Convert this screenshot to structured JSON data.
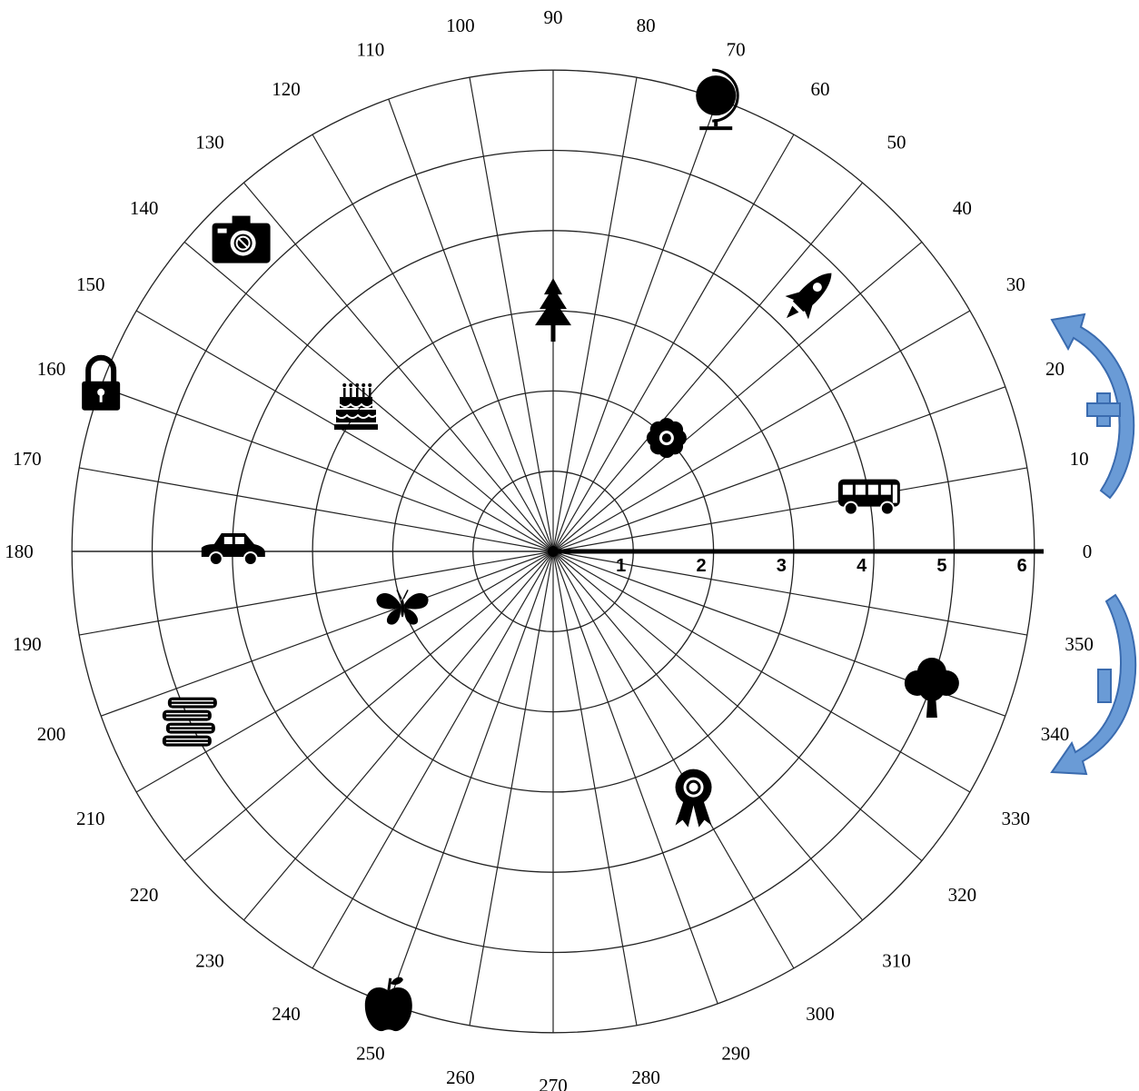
{
  "polar_grid": {
    "angle_labels": [
      "0",
      "10",
      "20",
      "30",
      "40",
      "50",
      "60",
      "70",
      "80",
      "90",
      "100",
      "110",
      "120",
      "130",
      "140",
      "150",
      "160",
      "170",
      "180",
      "190",
      "200",
      "210",
      "220",
      "230",
      "240",
      "250",
      "260",
      "270",
      "280",
      "290",
      "300",
      "310",
      "320",
      "330",
      "340",
      "350"
    ],
    "ring_labels": [
      "1",
      "2",
      "3",
      "4",
      "5",
      "6"
    ]
  },
  "icons": [
    {
      "name": "globe-icon",
      "angle_deg": 70,
      "radius": 6
    },
    {
      "name": "rocket-icon",
      "angle_deg": 45,
      "radius": 4.5
    },
    {
      "name": "flower-icon",
      "angle_deg": 45,
      "radius": 2
    },
    {
      "name": "bus-icon",
      "angle_deg": 10,
      "radius": 4
    },
    {
      "name": "tree-icon",
      "angle_deg": 90,
      "radius": 3
    },
    {
      "name": "camera-icon",
      "angle_deg": 135,
      "radius": 5.5
    },
    {
      "name": "lock-icon",
      "angle_deg": 160,
      "radius": 6
    },
    {
      "name": "cake-icon",
      "angle_deg": 145,
      "radius": 3
    },
    {
      "name": "car-icon",
      "angle_deg": 180,
      "radius": 4
    },
    {
      "name": "butterfly-icon",
      "angle_deg": 200,
      "radius": 2
    },
    {
      "name": "books-icon",
      "angle_deg": 205,
      "radius": 5
    },
    {
      "name": "apple-icon",
      "angle_deg": 250,
      "radius": 6
    },
    {
      "name": "ribbon-icon",
      "angle_deg": 300,
      "radius": 3.5
    },
    {
      "name": "oak-tree-icon",
      "angle_deg": 340,
      "radius": 5
    }
  ],
  "rotation_indicators": {
    "positive_sign": "+",
    "negative_sign": "−",
    "arrow_color": "#4E7FBF",
    "arrow_fill": "#6A9BD6"
  }
}
